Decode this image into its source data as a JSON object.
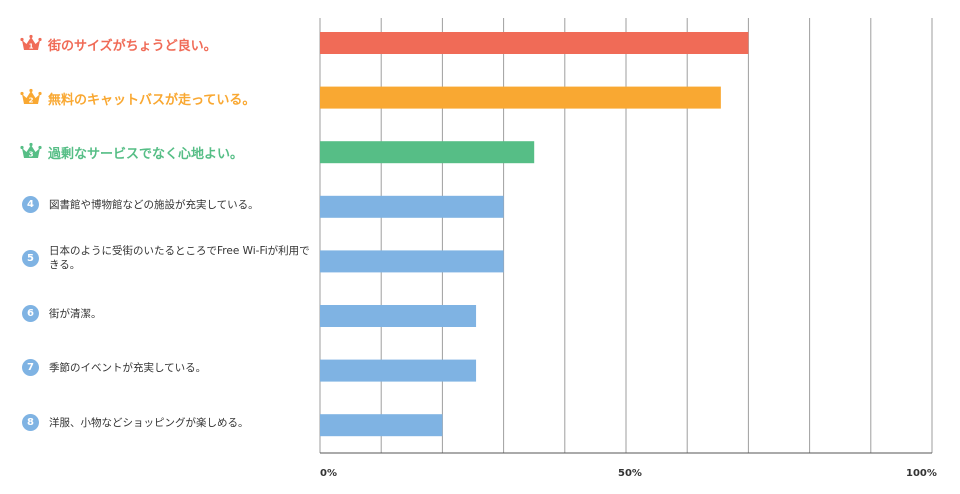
{
  "colors": {
    "rank1": "#f06b57",
    "rank2": "#f9a832",
    "rank3": "#56be86",
    "other": "#7fb3e3",
    "grid": "#9e9e9e"
  },
  "chart_data": {
    "type": "bar",
    "orientation": "horizontal",
    "categories": [
      "街のサイズがちょうど良い。",
      "無料のキャットバスが走っている。",
      "過剰なサービスでなく心地よい。",
      "図書館や博物館などの施設が充実している。",
      "日本のように受街のいたるところでFree Wi-Fiが利用できる。",
      "街が清潔。",
      "季節のイベントが充実している。",
      "洋服、小物などショッピングが楽しめる。"
    ],
    "ranks": [
      "1",
      "2",
      "3",
      "4",
      "5",
      "6",
      "7",
      "8"
    ],
    "values": [
      70,
      65.5,
      35,
      30,
      30,
      25.5,
      25.5,
      20
    ],
    "xlim": [
      0,
      100
    ],
    "xtick_labels": [
      "0%",
      "50%",
      "100%"
    ],
    "grid": true
  }
}
